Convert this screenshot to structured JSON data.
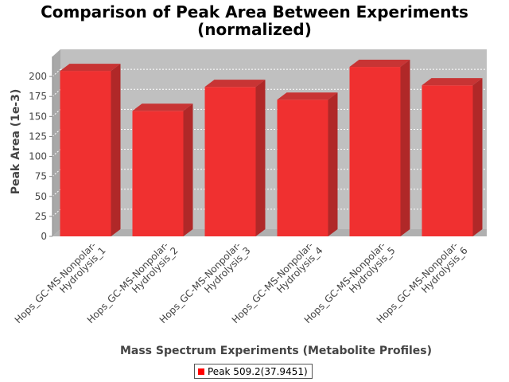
{
  "chart_data": {
    "type": "bar",
    "title_lines": [
      "Comparison of Peak Area Between Experiments",
      "(normalized)"
    ],
    "xlabel": "Mass Spectrum Experiments (Metabolite Profiles)",
    "ylabel": "Peak Area (1e-3)",
    "categories": [
      [
        "Hops_GC-MS-Nonpolar-",
        "Hydrolysis_1"
      ],
      [
        "Hops_GC-MS-Nonpolar-",
        "Hydrolysis_2"
      ],
      [
        "Hops_GC-MS-Nonpolar-",
        "Hydrolysis_3"
      ],
      [
        "Hops_GC-MS-Nonpolar-",
        "Hydrolysis_4"
      ],
      [
        "Hops_GC-MS-Nonpolar-",
        "Hydrolysis_5"
      ],
      [
        "Hops_GC-MS-Nonpolar-",
        "Hydrolysis_6"
      ]
    ],
    "series": [
      {
        "name": "Peak 509.2(37.9451)",
        "values": [
          207,
          157,
          187,
          171,
          212,
          189
        ]
      }
    ],
    "yticks": [
      0,
      25,
      50,
      75,
      100,
      125,
      150,
      175,
      200
    ],
    "ylim": [
      0,
      225
    ],
    "grid": true,
    "legend_position": "bottom",
    "colors": {
      "bar": "#f03030",
      "plot_background": "#c0c0c0",
      "gridline": "#ffffff"
    }
  }
}
